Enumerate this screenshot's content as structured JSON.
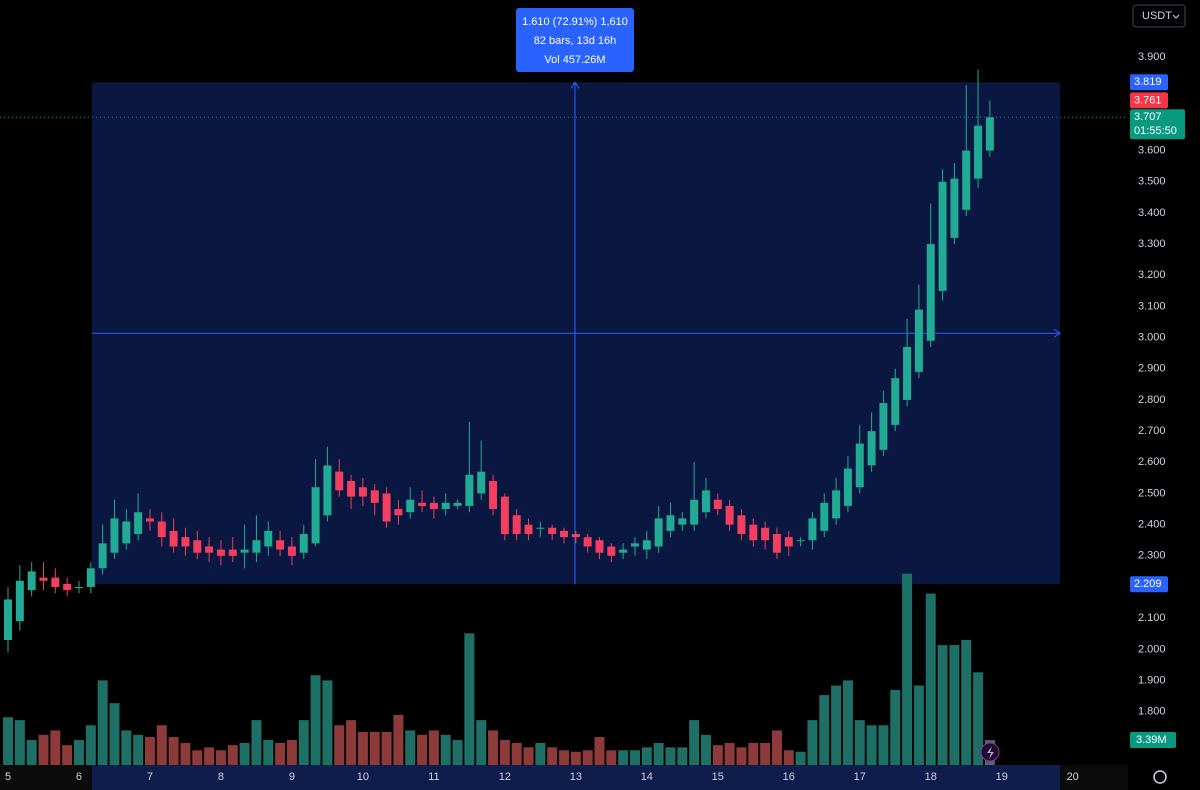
{
  "chart_data": {
    "type": "candlestick",
    "currency": "USDT",
    "x_labels": [
      "5",
      "6",
      "7",
      "8",
      "9",
      "10",
      "11",
      "12",
      "13",
      "14",
      "15",
      "16",
      "17",
      "18",
      "19",
      "20"
    ],
    "open": [
      2.03,
      2.09,
      2.19,
      2.23,
      2.23,
      2.21,
      2.2,
      2.2,
      2.26,
      2.31,
      2.34,
      2.37,
      2.42,
      2.41,
      2.38,
      2.36,
      2.35,
      2.33,
      2.32,
      2.32,
      2.31,
      2.31,
      2.33,
      2.35,
      2.33,
      2.31,
      2.34,
      2.43,
      2.57,
      2.54,
      2.52,
      2.51,
      2.5,
      2.45,
      2.44,
      2.47,
      2.47,
      2.45,
      2.46,
      2.46,
      2.5,
      2.54,
      2.49,
      2.43,
      2.4,
      2.39,
      2.39,
      2.38,
      2.37,
      2.36,
      2.35,
      2.33,
      2.31,
      2.33,
      2.32,
      2.33,
      2.38,
      2.4,
      2.4,
      2.44,
      2.48,
      2.46,
      2.43,
      2.4,
      2.39,
      2.37,
      2.36,
      2.35,
      2.35,
      2.38,
      2.42,
      2.46,
      2.52,
      2.59,
      2.64,
      2.72,
      2.8,
      2.89,
      2.99,
      3.15,
      3.32,
      3.41,
      3.51,
      3.6
    ],
    "high": [
      2.2,
      2.27,
      2.28,
      2.28,
      2.26,
      2.23,
      2.22,
      2.28,
      2.4,
      2.48,
      2.45,
      2.5,
      2.45,
      2.44,
      2.42,
      2.39,
      2.38,
      2.36,
      2.35,
      2.36,
      2.4,
      2.43,
      2.41,
      2.38,
      2.36,
      2.4,
      2.61,
      2.65,
      2.61,
      2.56,
      2.55,
      2.53,
      2.52,
      2.48,
      2.52,
      2.51,
      2.49,
      2.5,
      2.48,
      2.73,
      2.67,
      2.56,
      2.5,
      2.45,
      2.42,
      2.41,
      2.4,
      2.39,
      2.38,
      2.37,
      2.36,
      2.34,
      2.34,
      2.36,
      2.38,
      2.46,
      2.47,
      2.44,
      2.6,
      2.55,
      2.5,
      2.48,
      2.45,
      2.42,
      2.41,
      2.39,
      2.38,
      2.36,
      2.44,
      2.5,
      2.55,
      2.62,
      2.72,
      2.76,
      2.83,
      2.9,
      3.06,
      3.17,
      3.43,
      3.54,
      3.56,
      3.81,
      3.86,
      3.761
    ],
    "low": [
      1.99,
      2.06,
      2.17,
      2.19,
      2.18,
      2.17,
      2.18,
      2.18,
      2.24,
      2.29,
      2.32,
      2.35,
      2.38,
      2.33,
      2.31,
      2.3,
      2.29,
      2.28,
      2.27,
      2.28,
      2.26,
      2.28,
      2.3,
      2.3,
      2.27,
      2.29,
      2.33,
      2.41,
      2.49,
      2.45,
      2.46,
      2.43,
      2.39,
      2.4,
      2.42,
      2.44,
      2.42,
      2.43,
      2.45,
      2.44,
      2.48,
      2.43,
      2.35,
      2.35,
      2.35,
      2.36,
      2.35,
      2.34,
      2.34,
      2.31,
      2.29,
      2.28,
      2.29,
      2.3,
      2.29,
      2.31,
      2.36,
      2.38,
      2.38,
      2.42,
      2.43,
      2.38,
      2.35,
      2.33,
      2.32,
      2.29,
      2.3,
      2.33,
      2.32,
      2.36,
      2.4,
      2.44,
      2.5,
      2.57,
      2.62,
      2.7,
      2.78,
      2.87,
      2.97,
      3.12,
      3.3,
      3.39,
      3.48,
      3.58
    ],
    "close": [
      2.16,
      2.22,
      2.25,
      2.22,
      2.2,
      2.19,
      2.2,
      2.26,
      2.34,
      2.42,
      2.41,
      2.44,
      2.41,
      2.36,
      2.33,
      2.33,
      2.31,
      2.31,
      2.3,
      2.3,
      2.32,
      2.35,
      2.38,
      2.32,
      2.3,
      2.37,
      2.52,
      2.59,
      2.51,
      2.49,
      2.49,
      2.47,
      2.41,
      2.43,
      2.48,
      2.46,
      2.45,
      2.47,
      2.47,
      2.56,
      2.57,
      2.45,
      2.37,
      2.37,
      2.37,
      2.39,
      2.37,
      2.36,
      2.36,
      2.33,
      2.31,
      2.3,
      2.32,
      2.34,
      2.35,
      2.42,
      2.43,
      2.42,
      2.48,
      2.51,
      2.45,
      2.4,
      2.37,
      2.35,
      2.35,
      2.31,
      2.33,
      2.35,
      2.42,
      2.47,
      2.51,
      2.58,
      2.66,
      2.7,
      2.79,
      2.87,
      2.97,
      3.09,
      3.3,
      3.5,
      3.51,
      3.6,
      3.68,
      3.707
    ],
    "volume": [
      6.5,
      6.1,
      3.4,
      4.1,
      4.7,
      2.7,
      3.4,
      5.4,
      11.5,
      8.4,
      4.7,
      4.1,
      3.8,
      5.4,
      3.8,
      3.0,
      2.0,
      2.4,
      2.0,
      2.7,
      3.0,
      6.1,
      3.4,
      3.0,
      3.4,
      6.1,
      12.2,
      11.5,
      5.4,
      6.1,
      4.5,
      4.5,
      4.5,
      6.8,
      4.7,
      4.1,
      4.7,
      4.1,
      3.4,
      17.9,
      6.1,
      4.7,
      3.4,
      3.0,
      2.4,
      3.0,
      2.4,
      2.0,
      1.8,
      2.0,
      3.8,
      2.0,
      2.0,
      2.0,
      2.4,
      3.0,
      2.4,
      2.4,
      6.1,
      4.1,
      2.7,
      3.0,
      2.4,
      3.0,
      3.0,
      4.7,
      2.0,
      1.8,
      6.1,
      9.5,
      10.8,
      11.5,
      6.1,
      5.4,
      5.4,
      10.2,
      26.0,
      10.8,
      23.3,
      16.3,
      16.3,
      17.0,
      12.6,
      3.39
    ],
    "volume_label": "3.39M",
    "volume_lim": [
      0,
      28
    ],
    "up_color": "#22ab94",
    "down_color": "#f23e5f",
    "ylim": [
      1.629,
      4.083
    ],
    "yticks": [
      {
        "value": 3.9,
        "label": "3.900"
      },
      {
        "value": 3.6,
        "label": "3.600"
      },
      {
        "value": 3.5,
        "label": "3.500"
      },
      {
        "value": 3.4,
        "label": "3.400"
      },
      {
        "value": 3.3,
        "label": "3.300"
      },
      {
        "value": 3.2,
        "label": "3.200"
      },
      {
        "value": 3.1,
        "label": "3.100"
      },
      {
        "value": 3.0,
        "label": "3.000"
      },
      {
        "value": 2.9,
        "label": "2.900"
      },
      {
        "value": 2.8,
        "label": "2.800"
      },
      {
        "value": 2.7,
        "label": "2.700"
      },
      {
        "value": 2.6,
        "label": "2.600"
      },
      {
        "value": 2.5,
        "label": "2.500"
      },
      {
        "value": 2.4,
        "label": "2.400"
      },
      {
        "value": 2.3,
        "label": "2.300"
      },
      {
        "value": 2.1,
        "label": "2.100"
      },
      {
        "value": 2.0,
        "label": "2.000"
      },
      {
        "value": 1.9,
        "label": "1.900"
      },
      {
        "value": 1.8,
        "label": "1.800"
      }
    ],
    "measure": {
      "high": 3.819,
      "low": 2.209,
      "lines": [
        "1.610 (72.91%) 1,610",
        "82 bars, 13d 16h",
        "Vol 457.26M"
      ]
    },
    "price_labels": [
      {
        "value": 3.761,
        "color": "#f23645"
      },
      {
        "value": 3.707,
        "color": "#089981",
        "countdown": "01:55:50"
      }
    ]
  }
}
